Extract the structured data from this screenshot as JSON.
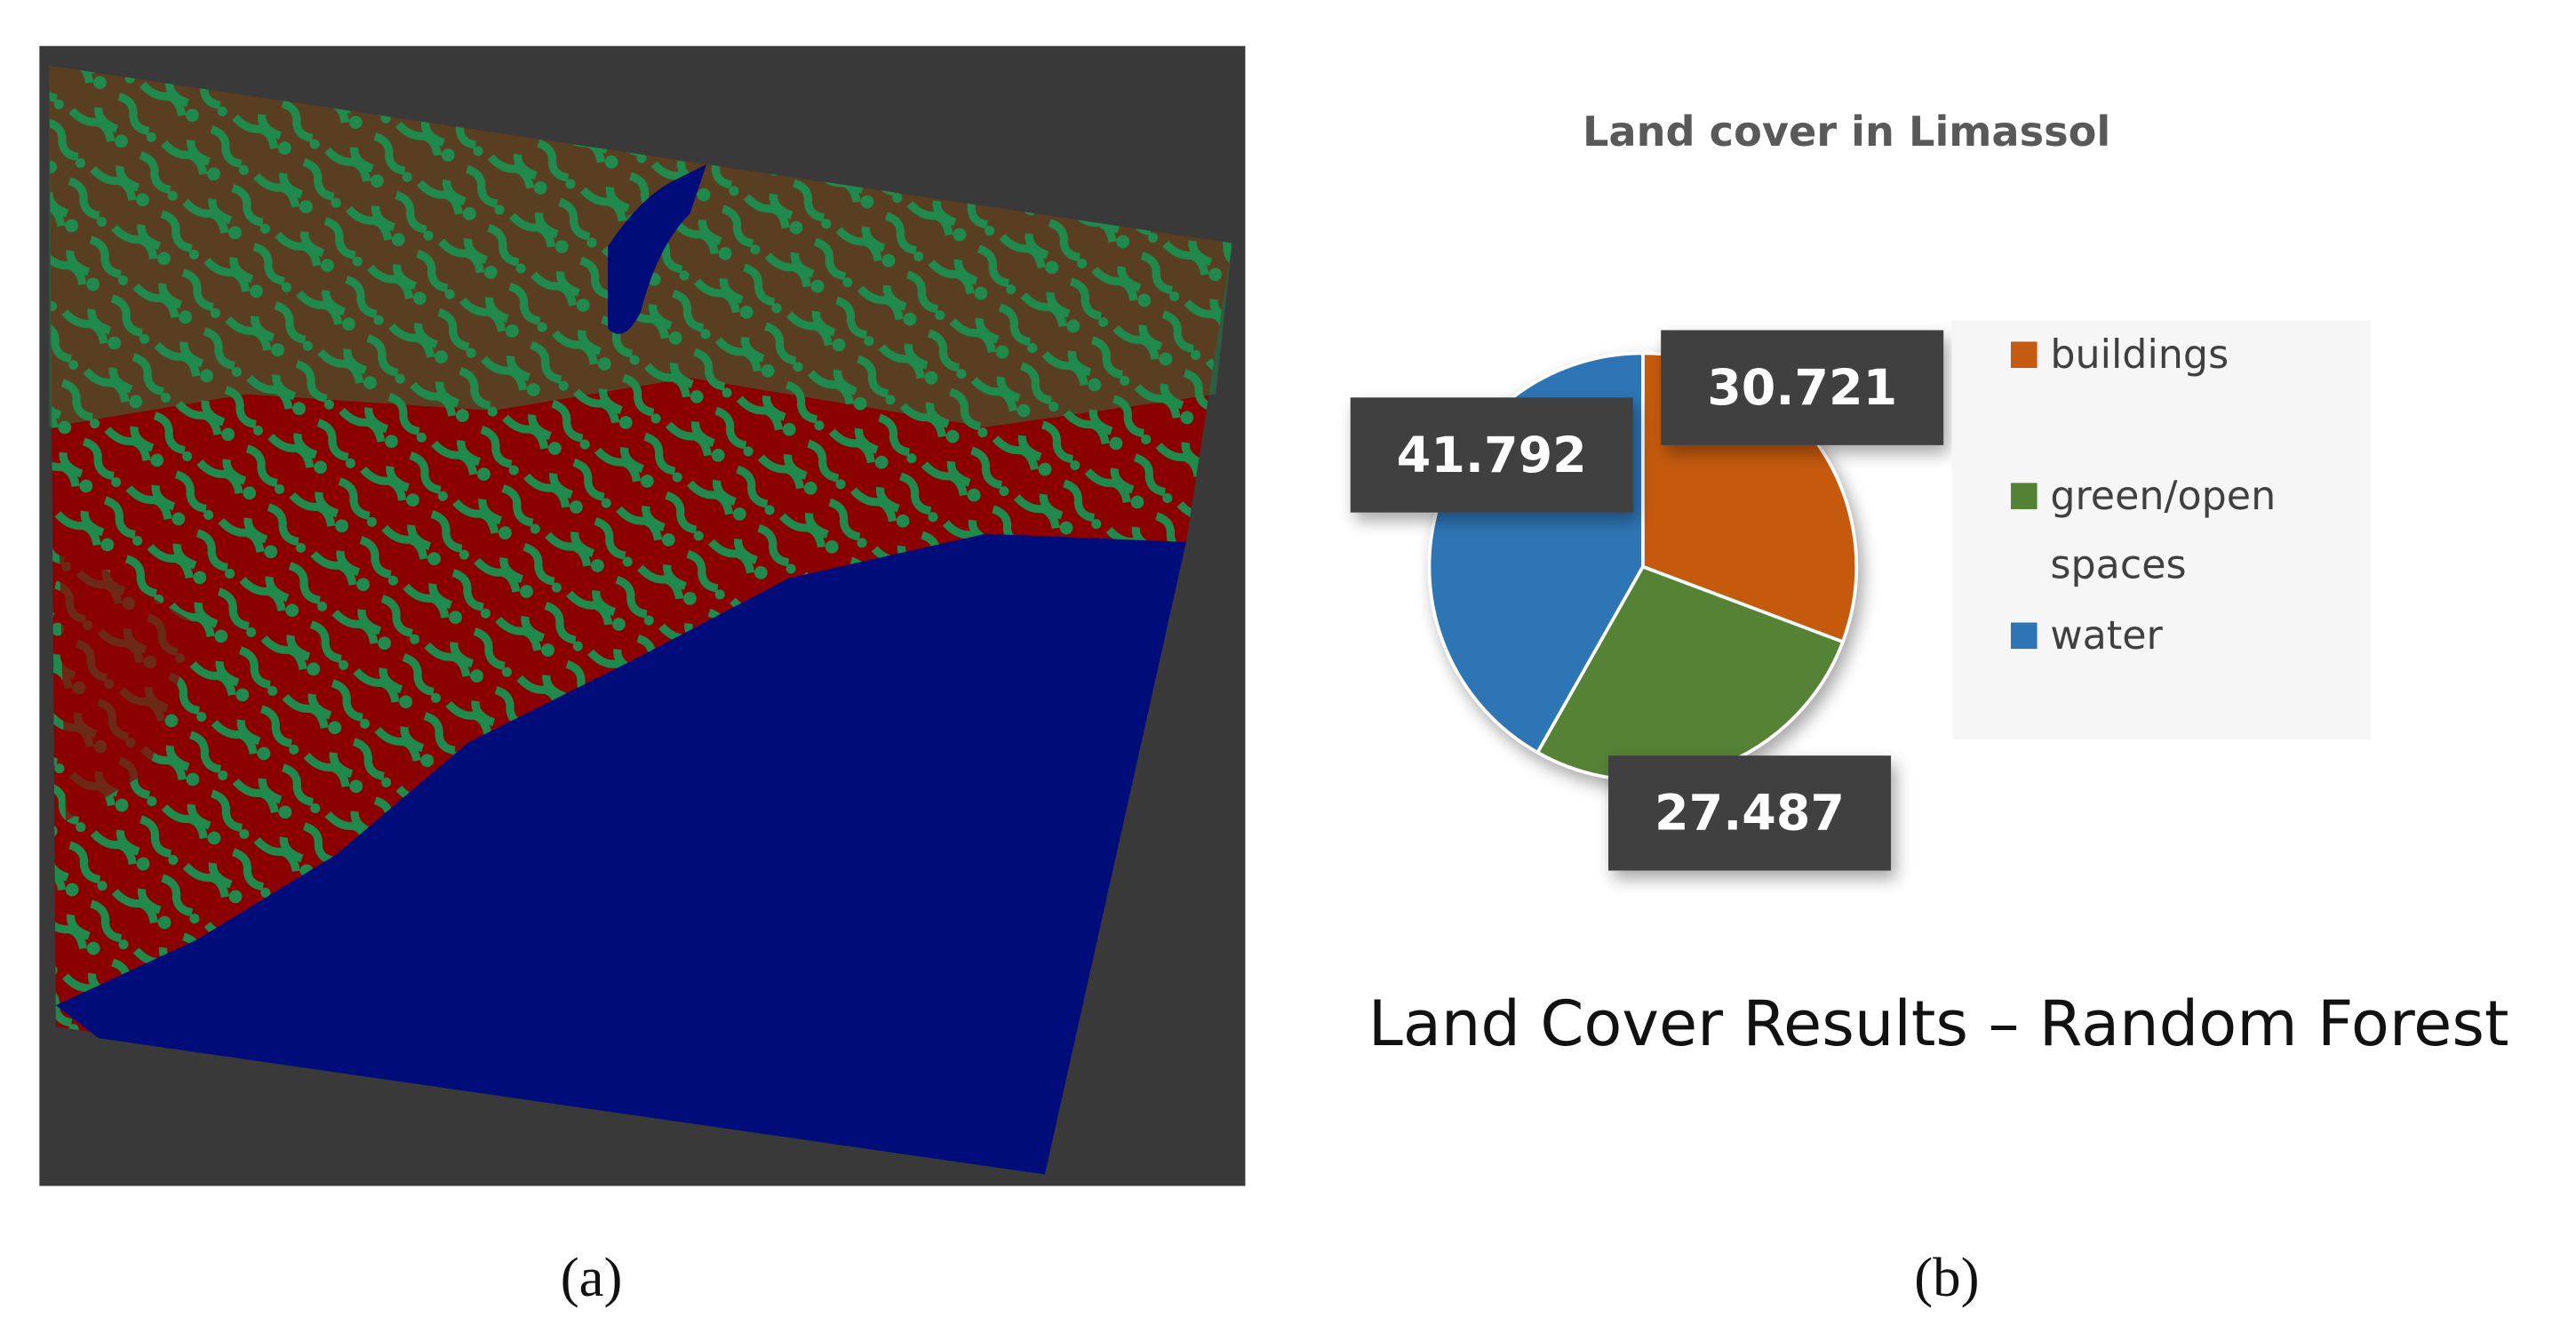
{
  "chart_data": {
    "type": "pie",
    "title": "Land cover in Limassol",
    "categories": [
      "buildings",
      "green/open spaces",
      "water"
    ],
    "values": [
      30.721,
      27.487,
      41.792
    ],
    "colors": [
      "#c55a11",
      "#548235",
      "#2e75b6"
    ],
    "legend": "right"
  },
  "caption": "Land Cover Results – Random Forest",
  "panel_labels": [
    "(a)",
    "(b)"
  ]
}
